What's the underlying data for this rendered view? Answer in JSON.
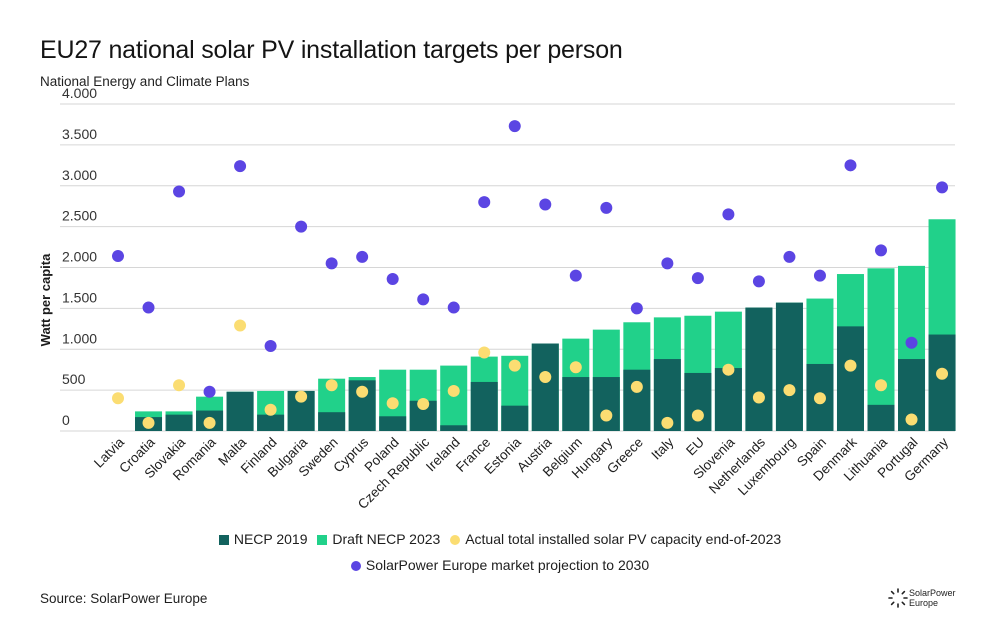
{
  "title": "EU27 national solar PV installation targets per person",
  "subtitle": "National Energy and Climate Plans",
  "source": "Source: SolarPower Europe",
  "logo": {
    "line1": "SolarPower",
    "line2": "Europe"
  },
  "colors": {
    "necp2019": "#12625e",
    "draft2023": "#21d18a",
    "actual": "#fbdd72",
    "projection": "#5b45e3"
  },
  "chart_data": {
    "type": "bar",
    "ylabel": "Watt per capita",
    "ylim": [
      0,
      4000
    ],
    "yticks": [
      0,
      500,
      1000,
      1500,
      2000,
      2500,
      3000,
      3500,
      4000
    ],
    "ytick_labels": [
      "0",
      "500",
      "1.000",
      "1.500",
      "2.000",
      "2.500",
      "3.000",
      "3.500",
      "4.000"
    ],
    "grid": true,
    "legend_position": "bottom",
    "categories": [
      "Latvia",
      "Croatia",
      "Slovakia",
      "Romania",
      "Malta",
      "Finland",
      "Bulgaria",
      "Sweden",
      "Cyprus",
      "Poland",
      "Czech Republic",
      "Ireland",
      "France",
      "Estonia",
      "Austria",
      "Belgium",
      "Hungary",
      "Greece",
      "Italy",
      "EU",
      "Slovenia",
      "Netherlands",
      "Luxembourg",
      "Spain",
      "Denmark",
      "Lithuania",
      "Portugal",
      "Germany"
    ],
    "series": [
      {
        "name": "NECP 2019",
        "kind": "bar",
        "values": [
          0,
          170,
          200,
          250,
          480,
          200,
          490,
          230,
          620,
          180,
          370,
          70,
          600,
          310,
          1070,
          660,
          660,
          750,
          880,
          710,
          770,
          1510,
          1570,
          820,
          1280,
          320,
          880,
          1180
        ]
      },
      {
        "name": "Draft NECP 2023",
        "kind": "bar",
        "values": [
          0,
          240,
          240,
          420,
          480,
          490,
          490,
          640,
          660,
          750,
          750,
          800,
          910,
          920,
          1070,
          1130,
          1240,
          1330,
          1390,
          1410,
          1460,
          1510,
          1570,
          1620,
          1920,
          1990,
          2020,
          2590
        ]
      },
      {
        "name": "Actual total installed solar PV capacity end-of-2023",
        "kind": "dot",
        "values": [
          400,
          100,
          560,
          100,
          1290,
          260,
          420,
          560,
          480,
          340,
          330,
          490,
          960,
          800,
          660,
          780,
          190,
          540,
          100,
          190,
          750,
          410,
          500,
          400,
          800,
          560,
          140,
          700
        ]
      },
      {
        "name": "SolarPower Europe market projection to 2030",
        "kind": "dot",
        "values": [
          2140,
          1510,
          2930,
          480,
          3240,
          1040,
          2500,
          2050,
          2130,
          1860,
          1610,
          1510,
          2800,
          3730,
          2770,
          1900,
          2730,
          1500,
          2050,
          1870,
          2650,
          1830,
          2130,
          1900,
          3250,
          2210,
          1080,
          2980
        ]
      }
    ]
  }
}
